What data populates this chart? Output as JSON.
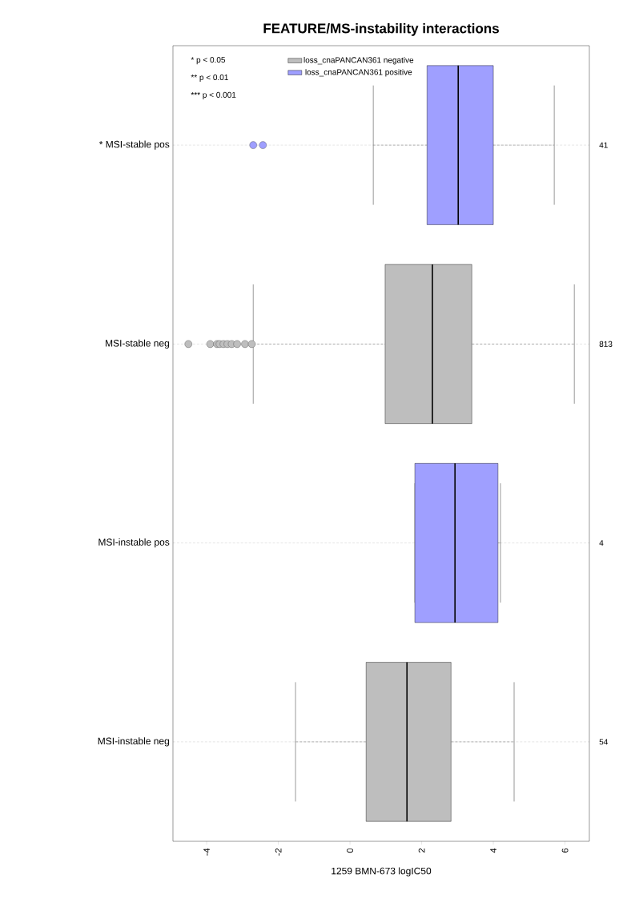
{
  "chart_data": {
    "type": "box",
    "orientation": "horizontal",
    "title": "FEATURE/MS-instability interactions",
    "xlabel": "1259 BMN-673 logIC50",
    "categories": [
      "* MSI-stable pos",
      "MSI-stable neg",
      "MSI-instable pos",
      "MSI-instable neg"
    ],
    "xlim": [
      -4.94,
      6.68
    ],
    "xticks": [
      -4,
      -2,
      0,
      2,
      4,
      6
    ],
    "grid": "y",
    "legend": "top left",
    "series": [
      {
        "name": "loss_cnaPANCAN361 negative",
        "color": "#bebebe",
        "boxes": [
          null,
          {
            "low": -2.7,
            "q1": 0.98,
            "median": 2.3,
            "q3": 3.4,
            "high": 6.26,
            "outliers": [
              -4.51,
              -3.9,
              -3.71,
              -3.64,
              -3.53,
              -3.42,
              -3.3,
              -3.15,
              -2.93,
              -2.74
            ]
          },
          null,
          {
            "low": -1.52,
            "q1": 0.45,
            "median": 1.59,
            "q3": 2.82,
            "high": 4.58
          }
        ]
      },
      {
        "name": "loss_cnaPANCAN361 positive",
        "color": "#9f9fff",
        "boxes": [
          {
            "low": 0.65,
            "q1": 2.15,
            "median": 3.02,
            "q3": 4.0,
            "high": 5.7,
            "outliers": [
              -2.7,
              -2.43
            ]
          },
          null,
          {
            "low": 1.81,
            "q1": 1.81,
            "median": 2.93,
            "q3": 4.13,
            "high": 4.2
          },
          null
        ]
      }
    ],
    "annotations": [
      "* p < 0.05",
      "** p < 0.01",
      "*** p < 0.001",
      "41",
      "813",
      "4",
      "54"
    ]
  }
}
